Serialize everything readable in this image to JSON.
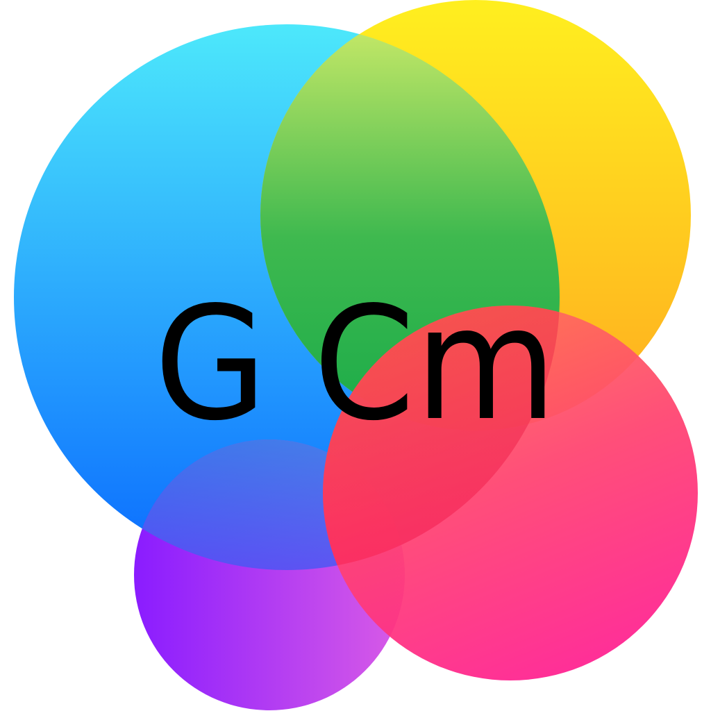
{
  "logo": {
    "text": "G Cm",
    "colors": {
      "blue_top": "#4de8fb",
      "blue_bottom": "#0a6bff",
      "yellow_top": "#ffef1f",
      "yellow_bottom": "#ffab1f",
      "green_top": "#d6ee6a",
      "green_bottom": "#1aab49",
      "pink_top": "#ff7a55",
      "pink_bottom": "#ff2291",
      "purple_left": "#8a1cff",
      "purple_right": "#d95ce6",
      "text": "#000000"
    }
  }
}
